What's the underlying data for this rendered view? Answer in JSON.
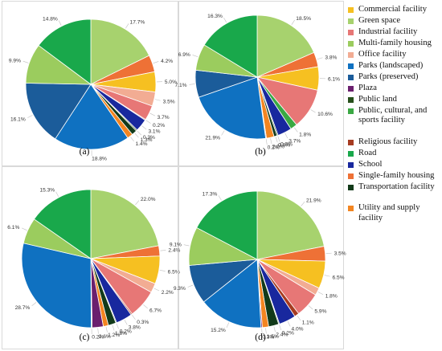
{
  "legend": [
    {
      "label": "Commercial facility",
      "color": "#F6C021"
    },
    {
      "label": "Green space",
      "color": "#A7D26E"
    },
    {
      "label": "Industrial facility",
      "color": "#E77776"
    },
    {
      "label": "Multi-family housing",
      "color": "#9BCC5E"
    },
    {
      "label": "Office facility",
      "color": "#F2AC93"
    },
    {
      "label": "Parks (landscaped)",
      "color": "#0F71C1"
    },
    {
      "label": "Parks (preserved)",
      "color": "#1B5C9A"
    },
    {
      "label": "Plaza",
      "color": "#6B1F6E"
    },
    {
      "label": "Public land",
      "color": "#264F1A"
    },
    {
      "label": "Public, cultural, and sports facility",
      "color": "#3AA843"
    },
    {
      "label": "Religious facility",
      "color": "#A63B21"
    },
    {
      "label": "Road",
      "color": "#19A84B"
    },
    {
      "label": "School",
      "color": "#18289E"
    },
    {
      "label": "Single-family housing",
      "color": "#EE7136"
    },
    {
      "label": "Transportation facility",
      "color": "#123A1A"
    },
    {
      "label": "Utility and supply facility",
      "color": "#F38521"
    }
  ],
  "chart_data": [
    {
      "type": "pie",
      "caption": "(a)",
      "slices": [
        {
          "category": "Green space",
          "value": 17.7,
          "label": "17.7%"
        },
        {
          "category": "Single-family housing",
          "value": 4.2,
          "label": "4.2%"
        },
        {
          "category": "Commercial facility",
          "value": 5.0,
          "label": "5.0%"
        },
        {
          "category": "Office facility",
          "value": 3.5,
          "label": "3.5%"
        },
        {
          "category": "Industrial facility",
          "value": 3.7,
          "label": "3.7%"
        },
        {
          "category": "Religious facility",
          "value": 0.2,
          "label": "0.2%"
        },
        {
          "category": "School",
          "value": 3.1,
          "label": "3.1%"
        },
        {
          "category": "Public land",
          "value": 0.3,
          "label": "0.3%"
        },
        {
          "category": "Transportation facility",
          "value": 1.3,
          "label": "1.3%"
        },
        {
          "category": "Utility and supply facility",
          "value": 1.4,
          "label": "1.4%"
        },
        {
          "category": "Parks (landscaped)",
          "value": 18.8,
          "label": "18.8%"
        },
        {
          "category": "Parks (preserved)",
          "value": 16.1,
          "label": "16.1%"
        },
        {
          "category": "Multi-family housing",
          "value": 9.9,
          "label": "9.9%"
        },
        {
          "category": "Road",
          "value": 14.8,
          "label": "14.8%"
        }
      ]
    },
    {
      "type": "pie",
      "caption": "(b)",
      "slices": [
        {
          "category": "Green space",
          "value": 18.5,
          "label": "18.5%"
        },
        {
          "category": "Single-family housing",
          "value": 3.8,
          "label": "3.8%"
        },
        {
          "category": "Commercial facility",
          "value": 6.1,
          "label": "6.1%"
        },
        {
          "category": "Industrial facility",
          "value": 10.6,
          "label": "10.6%"
        },
        {
          "category": "Public, cultural, and sports facility",
          "value": 1.8,
          "label": "1.8%"
        },
        {
          "category": "School",
          "value": 3.7,
          "label": "3.7%"
        },
        {
          "category": "Public land",
          "value": 0.3,
          "label": "0.3%"
        },
        {
          "category": "Transportation facility",
          "value": 0.8,
          "label": "0.8%"
        },
        {
          "category": "Utility and supply facility",
          "value": 2.0,
          "label": "2.0%"
        },
        {
          "category": "Plaza",
          "value": 0.2,
          "label": "0.2%"
        },
        {
          "category": "Parks (landscaped)",
          "value": 21.9,
          "label": "21.9%"
        },
        {
          "category": "Parks (preserved)",
          "value": 7.1,
          "label": "7.1%"
        },
        {
          "category": "Multi-family housing",
          "value": 6.9,
          "label": "6.9%"
        },
        {
          "category": "Road",
          "value": 16.3,
          "label": "16.3%"
        }
      ]
    },
    {
      "type": "pie",
      "caption": "(c)",
      "slices": [
        {
          "category": "Green space",
          "value": 22.0,
          "label": "22.0%"
        },
        {
          "category": "Single-family housing",
          "value": 2.4,
          "label": "2.4%"
        },
        {
          "category": "Commercial facility",
          "value": 6.5,
          "label": "6.5%"
        },
        {
          "category": "Office facility",
          "value": 2.2,
          "label": "2.2%"
        },
        {
          "category": "Industrial facility",
          "value": 6.7,
          "label": "6.7%"
        },
        {
          "category": "Religious facility",
          "value": 0.3,
          "label": "0.3%"
        },
        {
          "category": "School",
          "value": 3.8,
          "label": "3.8%"
        },
        {
          "category": "Public land",
          "value": 0.2,
          "label": "0.2%"
        },
        {
          "category": "Transportation facility",
          "value": 1.8,
          "label": "1.8%"
        },
        {
          "category": "Utility and supply facility",
          "value": 1.2,
          "label": "1.2%"
        },
        {
          "category": "Plaza",
          "value": 2.6,
          "label": "2.6%"
        },
        {
          "category": "Public, cultural, and sports facility",
          "value": 0.2,
          "label": "0.2%"
        },
        {
          "category": "Parks (landscaped)",
          "value": 28.7,
          "label": "28.7%"
        },
        {
          "category": "Multi-family housing",
          "value": 6.1,
          "label": "6.1%"
        },
        {
          "category": "Road",
          "value": 15.3,
          "label": "15.3%"
        }
      ]
    },
    {
      "type": "pie",
      "caption": "(d)",
      "slices": [
        {
          "category": "Green space",
          "value": 21.9,
          "label": "21.9%"
        },
        {
          "category": "Single-family housing",
          "value": 3.5,
          "label": "3.5%"
        },
        {
          "category": "Commercial facility",
          "value": 6.5,
          "label": "6.5%"
        },
        {
          "category": "Office facility",
          "value": 1.8,
          "label": "1.8%"
        },
        {
          "category": "Industrial facility",
          "value": 5.9,
          "label": "5.9%"
        },
        {
          "category": "Religious facility",
          "value": 1.1,
          "label": "1.1%"
        },
        {
          "category": "School",
          "value": 4.0,
          "label": "4.0%"
        },
        {
          "category": "Public land",
          "value": 0.2,
          "label": "0.2%"
        },
        {
          "category": "Transportation facility",
          "value": 2.4,
          "label": "2.4%"
        },
        {
          "category": "Utility and supply facility",
          "value": 1.5,
          "label": "1.5%"
        },
        {
          "category": "Plaza",
          "value": 0.3,
          "label": "0.3%"
        },
        {
          "category": "Parks (landscaped)",
          "value": 15.2,
          "label": "15.2%"
        },
        {
          "category": "Parks (preserved)",
          "value": 9.3,
          "label": "9.3%"
        },
        {
          "category": "Multi-family housing",
          "value": 9.1,
          "label": "9.1%"
        },
        {
          "category": "Road",
          "value": 17.3,
          "label": "17.3%"
        }
      ]
    }
  ]
}
